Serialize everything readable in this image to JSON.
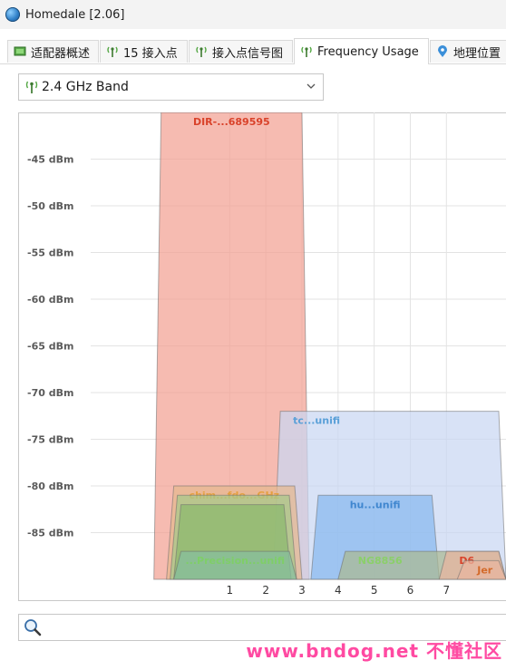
{
  "window": {
    "title": "Homedale [2.06]"
  },
  "tabs": [
    {
      "label": "适配器概述",
      "icon": "flag-icon"
    },
    {
      "label": "15 接入点",
      "icon": "antenna-icon"
    },
    {
      "label": "接入点信号图",
      "icon": "antenna-icon"
    },
    {
      "label": "Frequency Usage",
      "icon": "antenna-icon",
      "active": true
    },
    {
      "label": "地理位置",
      "icon": "location-pin-icon"
    }
  ],
  "band_select": {
    "value": "2.4 GHz Band",
    "icon": "antenna-icon"
  },
  "chart_data": {
    "type": "area",
    "title": "",
    "xlabel": "",
    "ylabel": "",
    "y_tick_labels": [
      "-45 dBm",
      "-50 dBm",
      "-55 dBm",
      "-60 dBm",
      "-65 dBm",
      "-70 dBm",
      "-75 dBm",
      "-80 dBm",
      "-85 dBm"
    ],
    "y_ticks": [
      -45,
      -50,
      -55,
      -60,
      -65,
      -70,
      -75,
      -80,
      -85
    ],
    "ylim": [
      -90,
      -40
    ],
    "x_tick_labels": [
      "1",
      "2",
      "3",
      "4",
      "5",
      "6",
      "7"
    ],
    "x_ticks": [
      1,
      2,
      3,
      4,
      5,
      6,
      7
    ],
    "xlim": [
      -2.85,
      8.65
    ],
    "grid": true,
    "series": [
      {
        "name": "DIR-...689595",
        "channel_from": -1.1,
        "channel_to": 3.2,
        "signal": -40,
        "color": "#f2a193",
        "label_color": "#d9422a"
      },
      {
        "name": "tc...unifi",
        "channel_from": 2.2,
        "channel_to": 8.65,
        "signal": -72,
        "color": "#c9d7f2",
        "label_color": "#5aa0d8"
      },
      {
        "name": "chim...fdo...GHz",
        "channel_from": -0.75,
        "channel_to": 3.0,
        "signal": -80,
        "color": "#e5b98f",
        "label_color": "#e5a040"
      },
      {
        "name": "hu...unifi",
        "channel_from": 3.25,
        "channel_to": 6.8,
        "signal": -81,
        "color": "#88b8ee",
        "label_color": "#3f86cf"
      },
      {
        "name": "",
        "channel_from": -0.65,
        "channel_to": 2.85,
        "signal": -81,
        "color": "#a6c98a",
        "label_color": "#8bbf6a"
      },
      {
        "name": "",
        "channel_from": -0.55,
        "channel_to": 2.7,
        "signal": -82,
        "color": "#8bb96d",
        "label_color": "#6aa34c"
      },
      {
        "name": "NG8856",
        "channel_from": 4.0,
        "channel_to": 8.65,
        "signal": -87,
        "color": "#aab892",
        "label_color": "#8bcf6a"
      },
      {
        "name": "D6",
        "channel_from": 6.8,
        "channel_to": 8.65,
        "signal": -87,
        "color": "#e9b4a0",
        "label_color": "#d9422a"
      },
      {
        "name": "Jer",
        "channel_from": 7.3,
        "channel_to": 8.65,
        "signal": -88,
        "color": "#e9b4a0",
        "label_color": "#d36a2a"
      },
      {
        "name": "...Precision...unifi",
        "channel_from": -0.55,
        "channel_to": 2.85,
        "signal": -87,
        "color": "#86bf9f",
        "label_color": "#7fce68"
      }
    ]
  },
  "search": {
    "value": "",
    "placeholder": "",
    "icon": "magnifier-icon"
  },
  "watermark": {
    "text": "www.bndog.net 不懂社区"
  }
}
